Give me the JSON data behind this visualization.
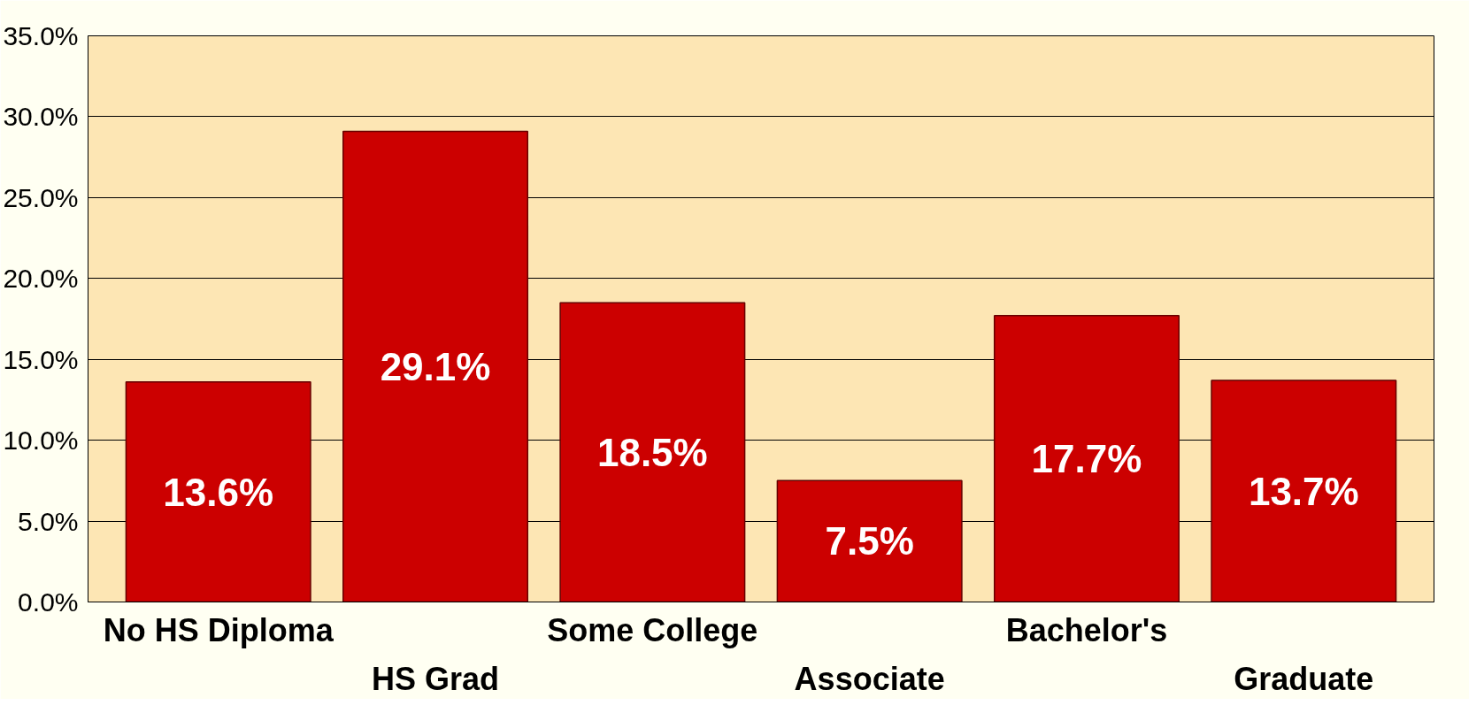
{
  "chart_data": {
    "type": "bar",
    "categories": [
      "No HS Diploma",
      "HS Grad",
      "Some College",
      "Associate",
      "Bachelor's",
      "Graduate"
    ],
    "values": [
      13.6,
      29.1,
      18.5,
      7.5,
      17.7,
      13.7
    ],
    "color": "#cc0000",
    "value_labels": [
      "13.6%",
      "29.1%",
      "18.5%",
      "7.5%",
      "17.7%",
      "13.7%"
    ],
    "ylim": [
      0,
      35
    ],
    "yticks": [
      {
        "value": 0,
        "label": "0.0%"
      },
      {
        "value": 5,
        "label": "5.0%"
      },
      {
        "value": 10,
        "label": "10.0%"
      },
      {
        "value": 15,
        "label": "15.0%"
      },
      {
        "value": 20,
        "label": "20.0%"
      },
      {
        "value": 25,
        "label": "25.0%"
      },
      {
        "value": 30,
        "label": "30.0%"
      },
      {
        "value": 35,
        "label": "35.0%"
      }
    ],
    "grid": "y"
  }
}
